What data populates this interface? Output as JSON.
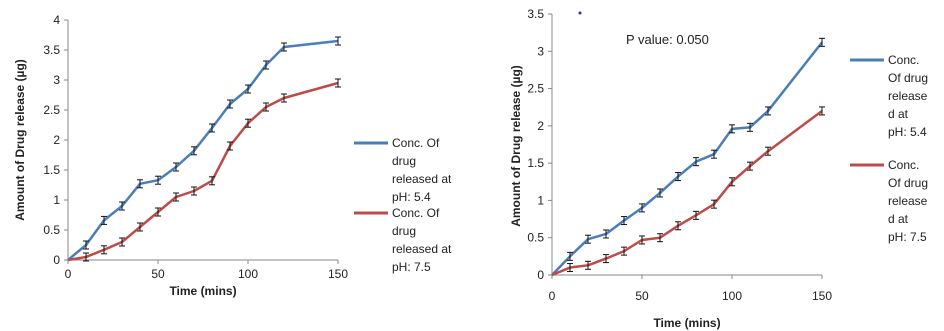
{
  "chart_data": [
    {
      "type": "line",
      "title": "",
      "xlabel": "Time (mins)",
      "ylabel": "Amount of Drug release (µg)",
      "xlim": [
        0,
        150
      ],
      "ylim": [
        0,
        4
      ],
      "xticks": [
        "0",
        "50",
        "100",
        "150"
      ],
      "yticks": [
        "0",
        "0.5",
        "1",
        "1.5",
        "2",
        "2.5",
        "3",
        "3.5",
        "4"
      ],
      "grid": false,
      "legend_position": "right",
      "x": [
        0,
        10,
        20,
        30,
        40,
        50,
        60,
        70,
        80,
        90,
        100,
        110,
        120,
        150
      ],
      "series": [
        {
          "name": "Conc. Of drug released at pH: 5.4",
          "legend_lines": [
            "Conc. Of",
            "drug",
            "released at",
            "pH: 5.4"
          ],
          "color": "#4a7ebb",
          "values": [
            0,
            0.25,
            0.66,
            0.9,
            1.27,
            1.33,
            1.55,
            1.82,
            2.2,
            2.6,
            2.85,
            3.25,
            3.55,
            3.65
          ]
        },
        {
          "name": "Conc. Of drug released at pH: 7.5",
          "legend_lines": [
            "Conc. Of",
            "drug",
            "released at",
            "pH: 7.5"
          ],
          "color": "#be4b48",
          "values": [
            0,
            0.05,
            0.17,
            0.3,
            0.55,
            0.8,
            1.05,
            1.15,
            1.32,
            1.9,
            2.28,
            2.55,
            2.7,
            2.95
          ]
        }
      ]
    },
    {
      "type": "line",
      "title": "",
      "xlabel": "Time (mins)",
      "ylabel": "Amount of Drug release (µg)",
      "xlim": [
        0,
        150
      ],
      "ylim": [
        0,
        3.5
      ],
      "xticks": [
        "0",
        "50",
        "100",
        "150"
      ],
      "yticks": [
        "0",
        "0.5",
        "1",
        "1.5",
        "2",
        "2.5",
        "3",
        "3.5"
      ],
      "grid": false,
      "legend_position": "right",
      "annotation": "P value: 0.050",
      "x": [
        0,
        10,
        20,
        30,
        40,
        50,
        60,
        70,
        80,
        90,
        100,
        110,
        120,
        150
      ],
      "series": [
        {
          "name": "Conc. Of drug release d at pH: 5.4",
          "legend_lines": [
            "Conc.",
            "Of drug",
            "release",
            "d at",
            "pH: 5.4"
          ],
          "color": "#4a7ebb",
          "values": [
            0,
            0.25,
            0.48,
            0.55,
            0.73,
            0.9,
            1.1,
            1.32,
            1.52,
            1.62,
            1.96,
            1.98,
            2.2,
            3.12
          ]
        },
        {
          "name": "Conc. Of drug release d at pH: 7.5",
          "legend_lines": [
            "Conc.",
            "Of drug",
            "release",
            "d at",
            "pH: 7.5"
          ],
          "color": "#be4b48",
          "values": [
            0,
            0.1,
            0.13,
            0.22,
            0.32,
            0.47,
            0.5,
            0.66,
            0.8,
            0.95,
            1.25,
            1.46,
            1.66,
            2.2
          ]
        }
      ]
    }
  ]
}
